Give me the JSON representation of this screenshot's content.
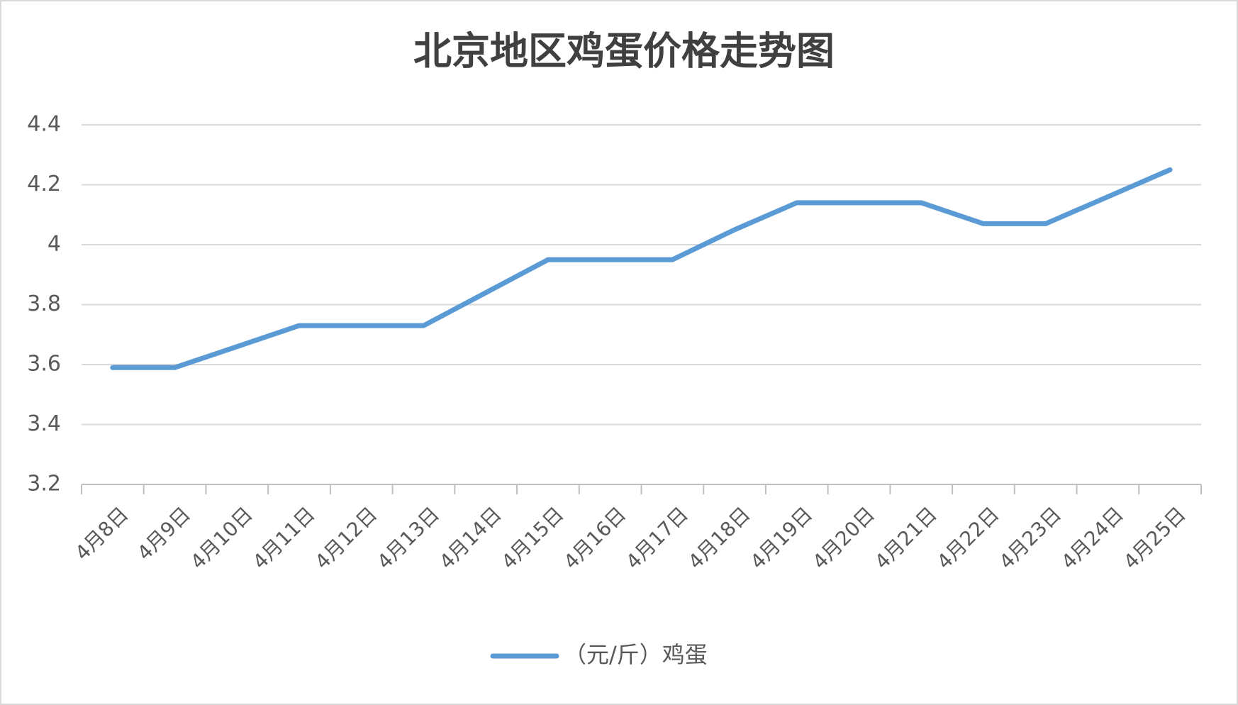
{
  "chart_data": {
    "type": "line",
    "title": "北京地区鸡蛋价格走势图",
    "categories": [
      "4月8日",
      "4月9日",
      "4月10日",
      "4月11日",
      "4月12日",
      "4月13日",
      "4月14日",
      "4月15日",
      "4月16日",
      "4月17日",
      "4月18日",
      "4月19日",
      "4月20日",
      "4月21日",
      "4月22日",
      "4月23日",
      "4月24日",
      "4月25日"
    ],
    "series": [
      {
        "name": "（元/斤）鸡蛋",
        "color": "#5b9bd5",
        "values": [
          3.59,
          3.59,
          3.66,
          3.73,
          3.73,
          3.73,
          3.84,
          3.95,
          3.95,
          3.95,
          4.05,
          4.14,
          4.14,
          4.14,
          4.07,
          4.07,
          4.16,
          4.25
        ]
      }
    ],
    "ylim": [
      3.2,
      4.4
    ],
    "yticks": [
      3.2,
      3.4,
      3.6,
      3.8,
      4,
      4.2,
      4.4
    ],
    "grid": true,
    "legend": "bottom"
  }
}
